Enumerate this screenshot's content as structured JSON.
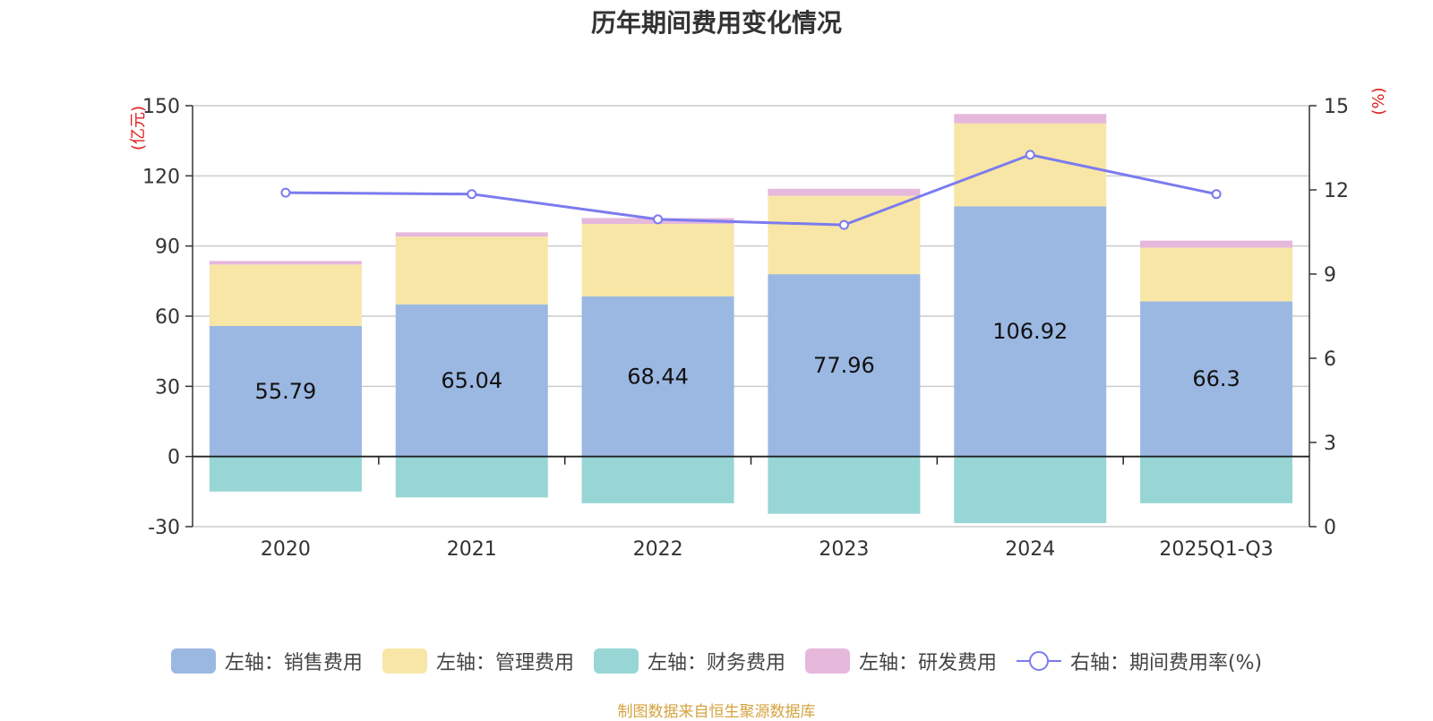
{
  "colors": {
    "sales": "#9bb8e2",
    "admin": "#f8e6a6",
    "finance": "#98d5d5",
    "rnd": "#e6b8dc",
    "rate": "#7b7bef",
    "unit": "#e02020",
    "source": "#d4a340"
  },
  "chart_data": {
    "type": "bar",
    "title": "历年期间费用变化情况",
    "categories": [
      "2020",
      "2021",
      "2022",
      "2023",
      "2024",
      "2025Q1-Q3"
    ],
    "left_axis": {
      "unit": "(亿元)",
      "ylim": [
        -30,
        150
      ],
      "ticks": [
        "150",
        "120",
        "90",
        "60",
        "30",
        "0",
        "-30"
      ]
    },
    "right_axis": {
      "unit": "(%)",
      "ylim": [
        0,
        15
      ],
      "ticks": [
        "15",
        "12",
        "9",
        "6",
        "3",
        "0"
      ]
    },
    "series": [
      {
        "name": "左轴：销售费用",
        "key": "sales",
        "values": [
          55.79,
          65.04,
          68.44,
          77.96,
          106.92,
          66.3
        ],
        "labels": [
          "55.79",
          "65.04",
          "68.44",
          "77.96",
          "106.92",
          "66.3"
        ]
      },
      {
        "name": "左轴：管理费用",
        "key": "admin",
        "values": [
          26.3,
          29.0,
          31.0,
          33.5,
          35.5,
          23.0
        ]
      },
      {
        "name": "左轴：财务费用",
        "key": "finance",
        "values": [
          -15.0,
          -17.5,
          -20.0,
          -24.5,
          -28.5,
          -20.0
        ]
      },
      {
        "name": "左轴：研发费用",
        "key": "rnd",
        "values": [
          1.5,
          1.8,
          2.5,
          3.0,
          4.0,
          3.0
        ]
      },
      {
        "name": "右轴：期间费用率(%)",
        "key": "rate",
        "type": "line",
        "axis": "right",
        "values": [
          11.9,
          11.85,
          10.95,
          10.75,
          13.25,
          11.85
        ]
      }
    ]
  },
  "source": "制图数据来自恒生聚源数据库"
}
